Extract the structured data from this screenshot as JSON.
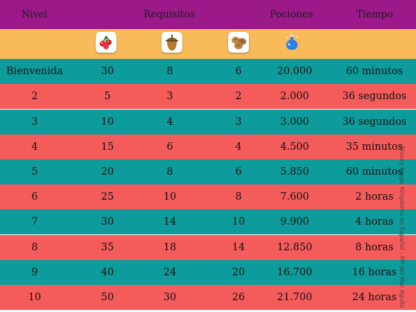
{
  "header": {
    "level": "Nivel",
    "requirements": "Requisitos",
    "potions": "Pociones",
    "time": "Tiempo"
  },
  "icons": [
    {
      "name": "berries-icon",
      "color": "#e0242e"
    },
    {
      "name": "acorn-icon",
      "color": "#9c6a2a"
    },
    {
      "name": "nuts-icon",
      "color": "#b47a3c"
    },
    {
      "name": "magic-potion-icon",
      "color": "#2b7fe6"
    }
  ],
  "rows": [
    {
      "level": "Bienvenida",
      "r1": "30",
      "r2": "8",
      "r3": "6",
      "potions": "20.000",
      "time": "60 minutos"
    },
    {
      "level": "2",
      "r1": "5",
      "r2": "3",
      "r3": "2",
      "potions": "2.000",
      "time": "36 segundos"
    },
    {
      "level": "3",
      "r1": "10",
      "r2": "4",
      "r3": "3",
      "potions": "3.000",
      "time": "36 segundos"
    },
    {
      "level": "4",
      "r1": "15",
      "r2": "6",
      "r3": "4",
      "potions": "4.500",
      "time": "35 minutos"
    },
    {
      "level": "5",
      "r1": "20",
      "r2": "8",
      "r3": "6",
      "potions": "5.850",
      "time": "60 minutos"
    },
    {
      "level": "6",
      "r1": "25",
      "r2": "10",
      "r3": "8",
      "potions": "7.600",
      "time": "2 horas"
    },
    {
      "level": "7",
      "r1": "30",
      "r2": "14",
      "r3": "10",
      "potions": "9.900",
      "time": "4 horas"
    },
    {
      "level": "8",
      "r1": "35",
      "r2": "18",
      "r3": "14",
      "potions": "12.850",
      "time": "8 horas"
    },
    {
      "level": "9",
      "r1": "40",
      "r2": "24",
      "r3": "20",
      "potions": "16.700",
      "time": "16 horas"
    },
    {
      "level": "10",
      "r1": "50",
      "r2": "30",
      "r3": "26",
      "potions": "21.700",
      "time": "24 horas"
    }
  ],
  "watermark": "Disney Magic Kingdoms en Español - Mª del Mar Agulló",
  "colors": {
    "header": "#9b1989",
    "icon_bar": "#f9ba5a",
    "row_a": "#0e9b9b",
    "row_b": "#f45b5b"
  }
}
